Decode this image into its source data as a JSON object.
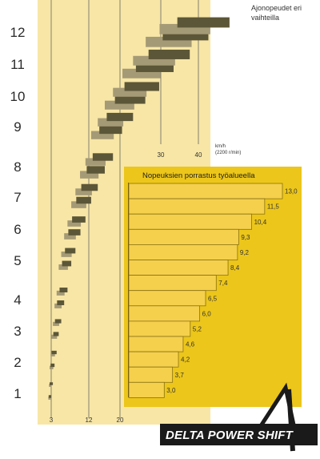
{
  "chart_data": [
    {
      "type": "range-bar",
      "annotation": [
        "Ajonopeudet eri",
        "vaihteilla"
      ],
      "unit_label": "km/h",
      "rpm_note": "(2200 r/min)",
      "x_ticks": [
        "3",
        "12",
        "20",
        "30",
        "40"
      ],
      "x_tick_values": [
        3,
        12,
        20,
        30,
        40
      ],
      "gears": [
        "1",
        "2",
        "3",
        "4",
        "5",
        "6",
        "7",
        "8",
        "9",
        "10",
        "11",
        "12"
      ],
      "gear_values": [
        1,
        2,
        3,
        4,
        5,
        6,
        7,
        8,
        9,
        10,
        11,
        12
      ],
      "range_bars": [
        {
          "gear": 1,
          "dark": [
            2.2,
            3.0
          ],
          "light": [
            2.1,
            2.8
          ]
        },
        {
          "gear": 1,
          "dark": [
            2.5,
            3.4
          ],
          "light": [
            2.3,
            3.1
          ]
        },
        {
          "gear": 2,
          "dark": [
            2.8,
            3.8
          ],
          "light": [
            2.5,
            3.5
          ]
        },
        {
          "gear": 2,
          "dark": [
            3.1,
            4.3
          ],
          "light": [
            2.8,
            3.9
          ]
        },
        {
          "gear": 3,
          "dark": [
            3.5,
            4.8
          ],
          "light": [
            3.1,
            4.4
          ]
        },
        {
          "gear": 3,
          "dark": [
            3.9,
            5.4
          ],
          "light": [
            3.4,
            4.9
          ]
        },
        {
          "gear": 4,
          "dark": [
            4.4,
            6.1
          ],
          "light": [
            3.8,
            5.5
          ]
        },
        {
          "gear": 4,
          "dark": [
            5.0,
            6.9
          ],
          "light": [
            4.3,
            6.2
          ]
        },
        {
          "gear": 5,
          "dark": [
            5.6,
            7.8
          ],
          "light": [
            4.8,
            7.0
          ]
        },
        {
          "gear": 5,
          "dark": [
            6.3,
            8.8
          ],
          "light": [
            5.4,
            7.9
          ]
        },
        {
          "gear": 6,
          "dark": [
            7.1,
            10.0
          ],
          "light": [
            6.1,
            8.9
          ]
        },
        {
          "gear": 6,
          "dark": [
            8.0,
            11.2
          ],
          "light": [
            6.9,
            10.1
          ]
        },
        {
          "gear": 7,
          "dark": [
            9.0,
            12.6
          ],
          "light": [
            7.8,
            11.4
          ]
        },
        {
          "gear": 7,
          "dark": [
            10.2,
            14.3
          ],
          "light": [
            8.8,
            12.8
          ]
        },
        {
          "gear": 8,
          "dark": [
            11.5,
            16.1
          ],
          "light": [
            9.9,
            14.5
          ]
        },
        {
          "gear": 8,
          "dark": [
            13.0,
            18.2
          ],
          "light": [
            11.2,
            16.3
          ]
        },
        {
          "gear": 9,
          "dark": [
            14.7,
            20.5
          ],
          "light": [
            12.6,
            18.4
          ]
        },
        {
          "gear": 9,
          "dark": [
            16.6,
            23.2
          ],
          "light": [
            14.3,
            20.8
          ]
        },
        {
          "gear": 10,
          "dark": [
            18.7,
            26.2
          ],
          "light": [
            16.1,
            23.5
          ]
        },
        {
          "gear": 10,
          "dark": [
            21.1,
            29.6
          ],
          "light": [
            18.2,
            26.5
          ]
        },
        {
          "gear": 11,
          "dark": [
            23.9,
            33.4
          ],
          "light": [
            20.6,
            29.9
          ]
        },
        {
          "gear": 11,
          "dark": [
            27.0,
            37.7
          ],
          "light": [
            23.2,
            33.8
          ]
        },
        {
          "gear": 12,
          "dark": [
            30.5,
            42.6
          ],
          "light": [
            26.3,
            38.2
          ]
        },
        {
          "gear": 12,
          "dark": [
            34.4,
            48.1
          ],
          "light": [
            29.7,
            43.1
          ]
        }
      ]
    },
    {
      "type": "bar",
      "title": "Nopeuksien porrastus työalueella",
      "values": [
        "13,0",
        "11,5",
        "10,4",
        "9,3",
        "9,2",
        "8,4",
        "7,4",
        "6,5",
        "6,0",
        "5,2",
        "4,6",
        "4,2",
        "3,7",
        "3,0"
      ],
      "numeric_values": [
        13.0,
        11.5,
        10.4,
        9.3,
        9.2,
        8.4,
        7.4,
        6.5,
        6.0,
        5.2,
        4.6,
        4.2,
        3.7,
        3.0
      ],
      "xlim": [
        0,
        13.0
      ]
    }
  ],
  "logo": {
    "text": "DELTA POWER SHIFT",
    "colors": {
      "box": "#1a1a1a",
      "text": "#ffffff",
      "triangle": "#ffffff"
    }
  },
  "colors": {
    "panel": "#f7e6a6",
    "inset": "#ecc61a",
    "bar_dark": "#5c5638",
    "bar_light": "#a59a76",
    "inset_bar": "#f5d04d",
    "grid": "#555555"
  }
}
